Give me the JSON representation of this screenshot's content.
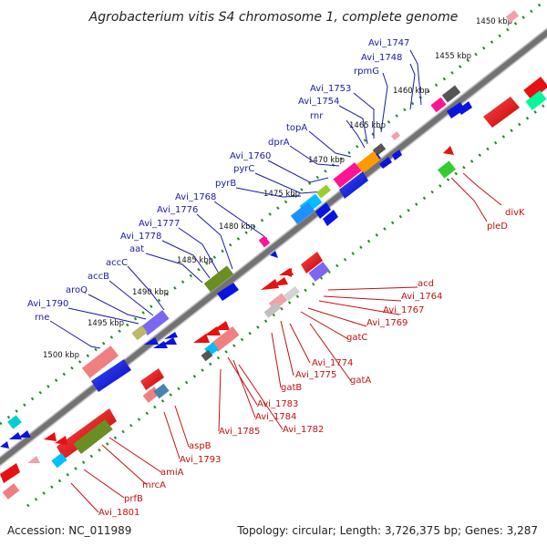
{
  "title": "Agrobacterium vitis S4 chromosome 1, complete genome",
  "footer": {
    "accession": "Accession: NC_011989",
    "summary": "Topology: circular; Length: 3,726,375 bp; Genes: 3,287"
  },
  "colors": {
    "forward_label": "#1a1aa8",
    "reverse_label": "#c41010",
    "forward_gene": "#0a14e0",
    "reverse_gene": "#e81010",
    "backbone": "#6e6e6e",
    "tick": "#1f8a1f"
  },
  "kbp_ticks": [
    "1450 kbp",
    "1455 kbp",
    "1460 kbp",
    "1465 kbp",
    "1470 kbp",
    "1475 kbp",
    "1480 kbp",
    "1485 kbp",
    "1490 kbp",
    "1495 kbp",
    "1500 kbp"
  ],
  "forward_genes": [
    "Avi_1747",
    "Avi_1748",
    "rpmG",
    "Avi_1753",
    "Avi_1754",
    "rnr",
    "topA",
    "dprA",
    "Avi_1760",
    "pyrC",
    "pyrB",
    "Avi_1768",
    "Avi_1776",
    "Avi_1777",
    "Avi_1778",
    "aat",
    "accC",
    "accB",
    "aroQ",
    "Avi_1790",
    "rne"
  ],
  "reverse_genes": [
    "divK",
    "pleD",
    "acd",
    "Avi_1764",
    "Avi_1767",
    "Avi_1769",
    "gatC",
    "Avi_1774",
    "Avi_1775",
    "gatA",
    "gatB",
    "Avi_1783",
    "Avi_1784",
    "Avi_1782",
    "Avi_1785",
    "aspB",
    "Avi_1793",
    "amiA",
    "mrcA",
    "prfB",
    "Avi_1801"
  ]
}
